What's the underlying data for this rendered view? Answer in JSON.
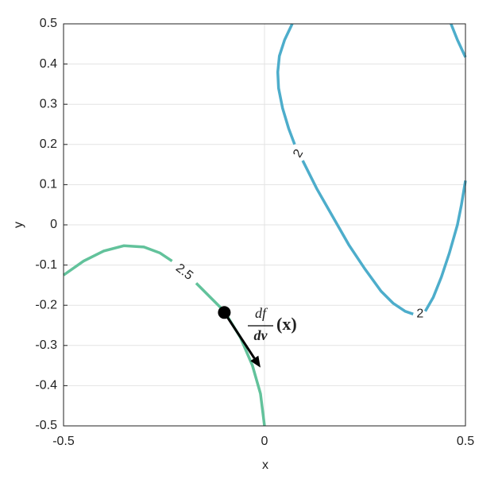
{
  "chart_data": {
    "type": "line",
    "xlabel": "x",
    "ylabel": "y",
    "xlim": [
      -0.5,
      0.5
    ],
    "ylim": [
      -0.5,
      0.5
    ],
    "xticks": [
      -0.5,
      0,
      0.5
    ],
    "yticks": [
      -0.5,
      -0.4,
      -0.3,
      -0.2,
      -0.1,
      0,
      0.1,
      0.2,
      0.3,
      0.4,
      0.5
    ],
    "grid": true,
    "series": [
      {
        "color": "#62c29b",
        "x": [
          -0.5,
          -0.45,
          -0.4,
          -0.35,
          -0.3,
          -0.26,
          -0.23,
          -0.2,
          -0.17,
          -0.13,
          -0.1,
          -0.06,
          -0.03,
          -0.01,
          0
        ],
        "values": [
          -0.125,
          -0.09,
          -0.065,
          -0.052,
          -0.055,
          -0.07,
          -0.09,
          null,
          -0.145,
          -0.185,
          -0.215,
          -0.28,
          -0.35,
          -0.42,
          -0.5
        ]
      },
      {
        "color": "#4dadcb",
        "x": [
          0.069,
          0.05,
          0.037,
          0.033,
          0.035,
          0.045,
          0.06,
          0.075,
          0.085,
          0.095,
          0.13,
          0.17,
          0.21,
          0.25,
          0.29,
          0.32,
          0.35,
          0.37,
          0.385,
          0.4,
          0.42,
          0.44,
          0.46,
          0.48,
          0.49,
          0.5
        ],
        "values": [
          0.5,
          0.46,
          0.42,
          0.38,
          0.34,
          0.29,
          0.24,
          0.2,
          null,
          0.16,
          0.09,
          0.02,
          -0.05,
          -0.11,
          -0.165,
          -0.195,
          -0.215,
          -0.222,
          null,
          -0.215,
          -0.18,
          -0.13,
          -0.07,
          0,
          0.05,
          0.11
        ]
      },
      {
        "color": "#4dadcb",
        "x": [
          0.464,
          0.48,
          0.5
        ],
        "values": [
          0.5,
          0.46,
          0.417
        ]
      }
    ],
    "contour_labels": [
      {
        "text": "2.5",
        "x": -0.2,
        "y": -0.118,
        "angle": 38
      },
      {
        "text": "2",
        "x": 0.085,
        "y": 0.177,
        "angle": -60
      },
      {
        "text": "2",
        "x": 0.387,
        "y": -0.222,
        "angle": 0
      }
    ],
    "point": [
      -0.1,
      -0.218
    ],
    "arrow_end": [
      -0.01,
      -0.355
    ],
    "annotation": {
      "numerator": "df",
      "denominator": "dv",
      "argument": "(x)"
    }
  }
}
